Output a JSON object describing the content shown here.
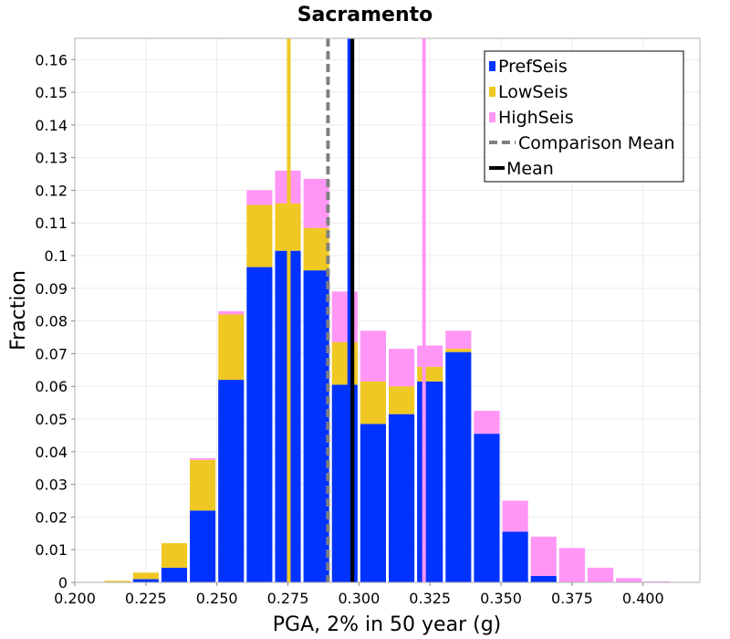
{
  "chart_data": {
    "type": "bar",
    "title": "Sacramento",
    "xlabel": "PGA, 2% in 50 year (g)",
    "ylabel": "Fraction",
    "xlim": [
      0.2,
      0.42
    ],
    "ylim": [
      0,
      0.1665
    ],
    "xticks": [
      "0.200",
      "0.225",
      "0.250",
      "0.275",
      "0.300",
      "0.325",
      "0.350",
      "0.375",
      "0.400"
    ],
    "yticks": [
      "0",
      "0.01",
      "0.02",
      "0.03",
      "0.04",
      "0.05",
      "0.06",
      "0.07",
      "0.08",
      "0.09",
      "0.1",
      "0.11",
      "0.12",
      "0.13",
      "0.14",
      "0.15",
      "0.16"
    ],
    "grid": true,
    "legend_position": "top-right",
    "bin_width": 0.01,
    "bin_centers": [
      0.215,
      0.225,
      0.235,
      0.245,
      0.255,
      0.265,
      0.275,
      0.285,
      0.295,
      0.305,
      0.315,
      0.325,
      0.335,
      0.345,
      0.355,
      0.365,
      0.375,
      0.385,
      0.395,
      0.405
    ],
    "series": [
      {
        "name": "PrefSeis",
        "color": "#0033ff",
        "values": [
          0.0,
          0.001,
          0.0045,
          0.022,
          0.062,
          0.0965,
          0.1015,
          0.0955,
          0.0605,
          0.0485,
          0.0515,
          0.0615,
          0.0705,
          0.0455,
          0.0155,
          0.002,
          0.0,
          0.0,
          0.0,
          0.0
        ]
      },
      {
        "name": "LowSeis",
        "color": "#f0c823",
        "values": [
          0.0005,
          0.002,
          0.0075,
          0.0155,
          0.02,
          0.019,
          0.0145,
          0.013,
          0.013,
          0.013,
          0.0085,
          0.0045,
          0.001,
          0.0,
          0.0,
          0.0,
          0.0,
          0.0,
          0.0,
          0.0
        ]
      },
      {
        "name": "HighSeis",
        "color": "#ff96f5",
        "values": [
          0.0,
          0.0,
          0.0,
          0.0005,
          0.001,
          0.0045,
          0.01,
          0.015,
          0.0155,
          0.0155,
          0.0115,
          0.0065,
          0.0055,
          0.007,
          0.0095,
          0.012,
          0.0105,
          0.0045,
          0.0013,
          0.0003
        ]
      }
    ],
    "vertical_lines": [
      {
        "name": "LowSeis mean",
        "x": 0.2753,
        "color": "#f0c823",
        "style": "solid"
      },
      {
        "name": "HighSeis mean",
        "x": 0.3229,
        "color": "#ff96f5",
        "style": "solid"
      },
      {
        "name": "Comparison Mean",
        "x": 0.2891,
        "color": "#808080",
        "style": "dashed"
      },
      {
        "name": "PrefSeis mean",
        "x": 0.2966,
        "color": "#0033ff",
        "style": "solid"
      },
      {
        "name": "Mean",
        "x": 0.2977,
        "color": "#000000",
        "style": "solid"
      }
    ],
    "legend": [
      {
        "label": "PrefSeis",
        "color": "#0033ff",
        "marker": "square"
      },
      {
        "label": "LowSeis",
        "color": "#f0c823",
        "marker": "square"
      },
      {
        "label": "HighSeis",
        "color": "#ff96f5",
        "marker": "square"
      },
      {
        "label": "Comparison Mean",
        "color": "#808080",
        "marker": "dashed-line"
      },
      {
        "label": "Mean",
        "color": "#000000",
        "marker": "solid-line"
      }
    ]
  }
}
